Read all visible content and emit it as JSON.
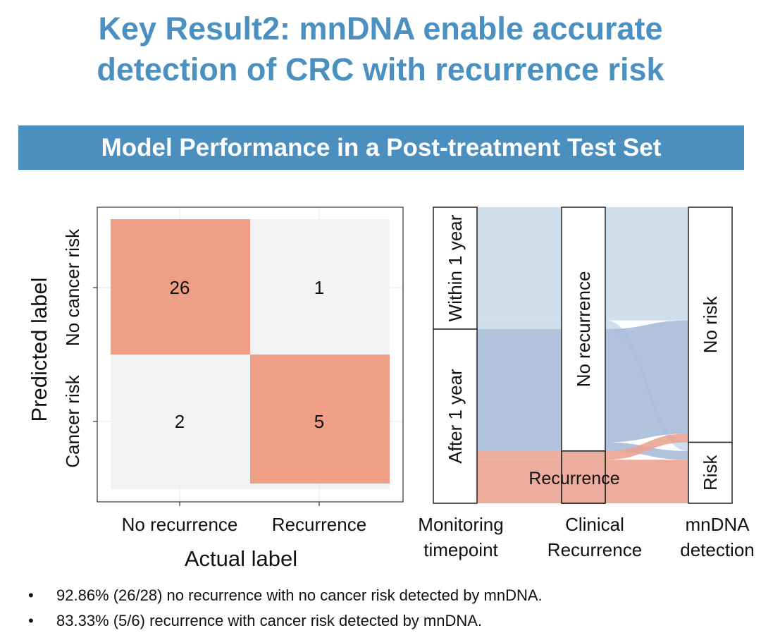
{
  "title_line1": "Key Result2: mnDNA enable accurate",
  "title_line2": "detection of CRC with recurrence risk",
  "banner": "Model Performance in a Post-treatment Test Set",
  "colors": {
    "title": "#4a90c0",
    "banner": "#4b8fbf",
    "matrix_high": "#ee9f86",
    "matrix_low": "#f2f2f2",
    "flow_light_blue": "#c9dce9",
    "flow_blue": "#a9bbd9",
    "flow_red": "#eaa394"
  },
  "chart_data": [
    {
      "type": "heatmap",
      "xlabel": "Actual label",
      "ylabel": "Predicted label",
      "x_categories": [
        "No recurrence",
        "Recurrence"
      ],
      "y_categories": [
        "No cancer risk",
        "Cancer risk"
      ],
      "cells": [
        {
          "actual": "No recurrence",
          "predicted": "No cancer risk",
          "value": 26
        },
        {
          "actual": "Recurrence",
          "predicted": "No cancer risk",
          "value": 1
        },
        {
          "actual": "No recurrence",
          "predicted": "Cancer risk",
          "value": 2
        },
        {
          "actual": "Recurrence",
          "predicted": "Cancer risk",
          "value": 5
        }
      ]
    },
    {
      "type": "alluvial",
      "axes": [
        {
          "label": "Monitoring timepoint",
          "strata": [
            "Within 1 year",
            "After 1 year"
          ]
        },
        {
          "label": "Clinical Recurrence",
          "strata": [
            "No recurrence",
            "Recurrence"
          ]
        },
        {
          "label": "mnDNA detection",
          "strata": [
            "No risk",
            "Risk"
          ]
        }
      ],
      "flows": [
        {
          "timepoint": "Within 1 year",
          "clinical": "No recurrence",
          "mnDNA": "No risk",
          "count": 13
        },
        {
          "timepoint": "Within 1 year",
          "clinical": "No recurrence",
          "mnDNA": "Risk",
          "count": 1
        },
        {
          "timepoint": "After 1 year",
          "clinical": "No recurrence",
          "mnDNA": "No risk",
          "count": 13
        },
        {
          "timepoint": "After 1 year",
          "clinical": "No recurrence",
          "mnDNA": "Risk",
          "count": 1
        },
        {
          "timepoint": "After 1 year",
          "clinical": "Recurrence",
          "mnDNA": "No risk",
          "count": 1
        },
        {
          "timepoint": "After 1 year",
          "clinical": "Recurrence",
          "mnDNA": "Risk",
          "count": 5
        }
      ]
    }
  ],
  "notes": [
    "92.86% (26/28) no recurrence with no cancer risk detected by mnDNA.",
    "83.33% (5/6) recurrence with cancer risk detected by mnDNA."
  ]
}
